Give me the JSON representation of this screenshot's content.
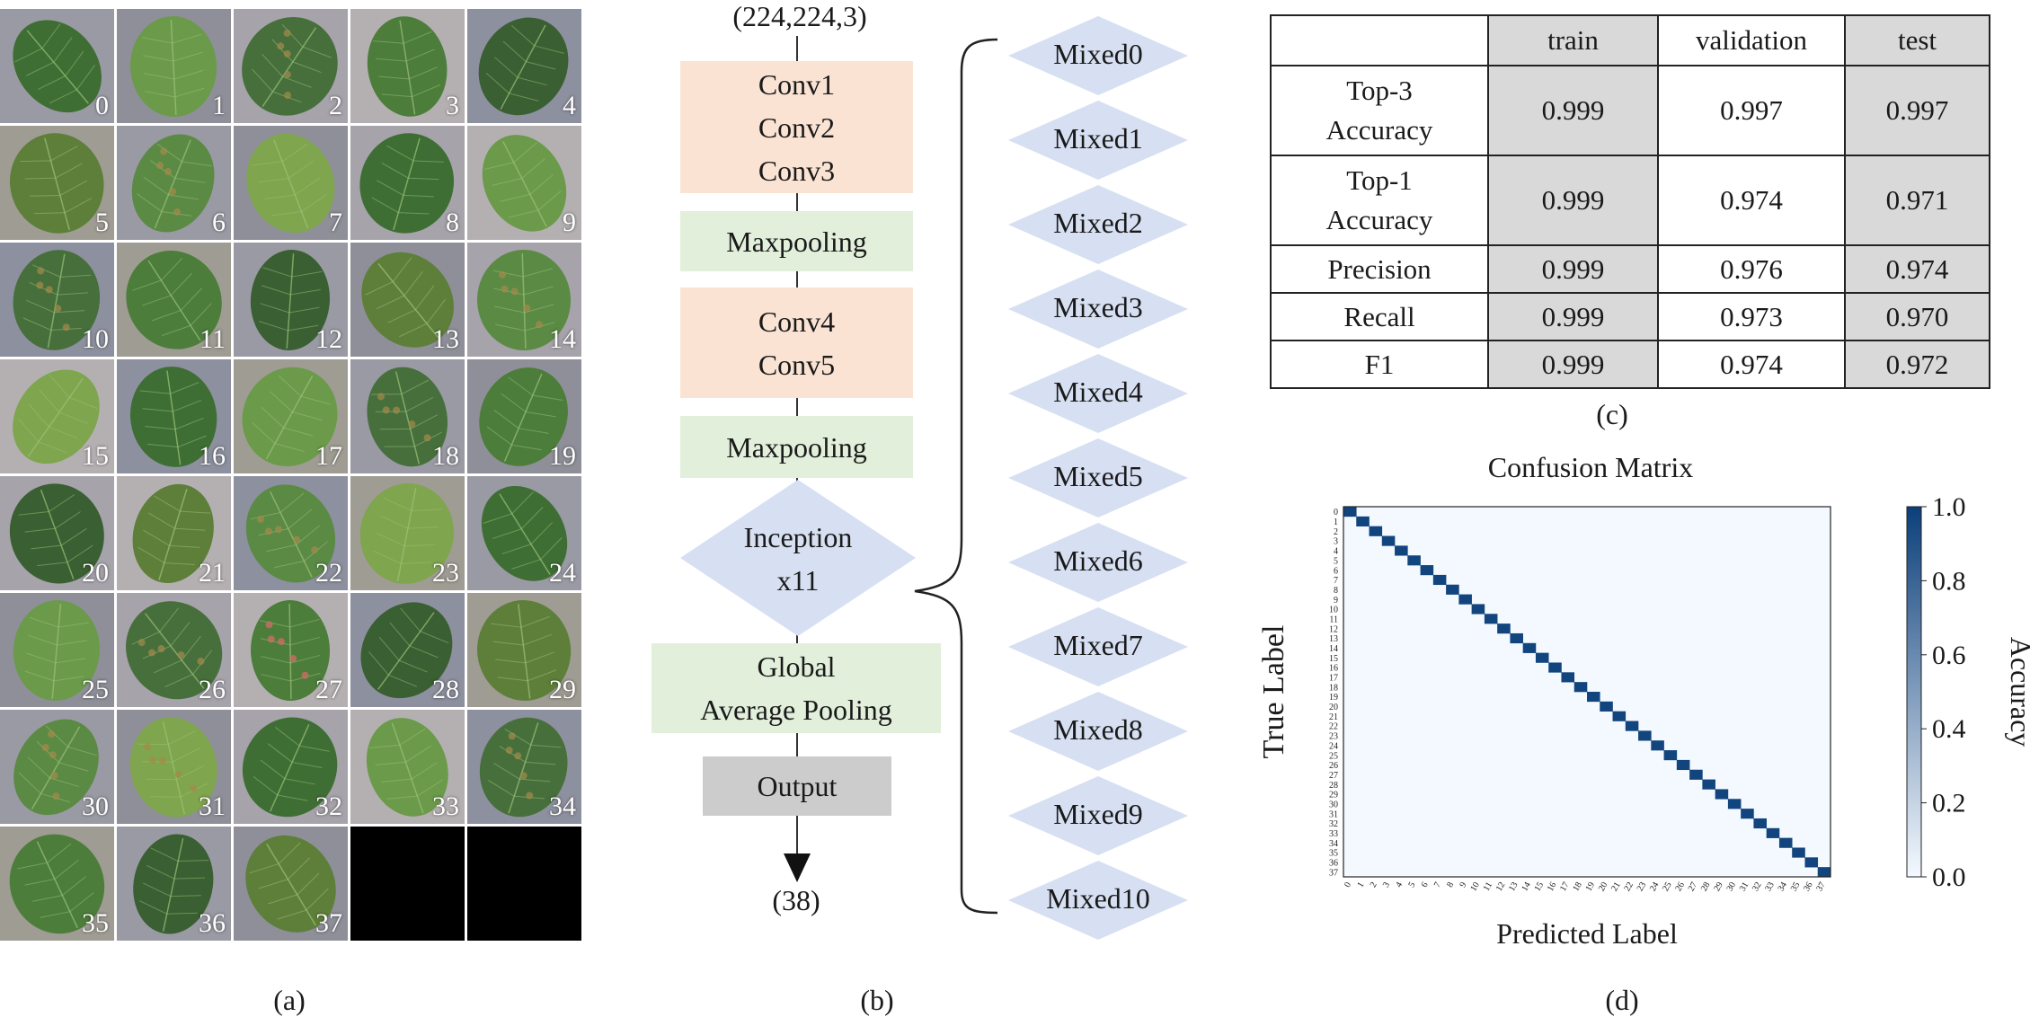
{
  "panel_a": {
    "caption": "(a)",
    "tile_labels": [
      "0",
      "1",
      "2",
      "3",
      "4",
      "5",
      "6",
      "7",
      "8",
      "9",
      "10",
      "11",
      "12",
      "13",
      "14",
      "15",
      "16",
      "17",
      "18",
      "19",
      "20",
      "21",
      "22",
      "23",
      "24",
      "25",
      "26",
      "27",
      "28",
      "29",
      "30",
      "31",
      "32",
      "33",
      "34",
      "35",
      "36",
      "37"
    ],
    "colors": {
      "leaf_dark": "#3f6e34",
      "leaf_mid": "#5b8a45",
      "leaf_light": "#8fb55a",
      "bg_gray": "#9a9aa4",
      "empty": "#000000"
    }
  },
  "panel_b": {
    "caption": "(b)",
    "input_shape": "(224,224,3)",
    "conv_block_1": [
      "Conv1",
      "Conv2",
      "Conv3"
    ],
    "maxpool_1": "Maxpooling",
    "conv_block_2": [
      "Conv4",
      "Conv5"
    ],
    "maxpool_2": "Maxpooling",
    "inception": [
      "Inception",
      "x11"
    ],
    "gap": [
      "Global",
      "Average Pooling"
    ],
    "output": "Output",
    "output_shape": "(38)",
    "mixed": [
      "Mixed0",
      "Mixed1",
      "Mixed2",
      "Mixed3",
      "Mixed4",
      "Mixed5",
      "Mixed6",
      "Mixed7",
      "Mixed8",
      "Mixed9",
      "Mixed10"
    ],
    "colors": {
      "conv": "#fbe3d4",
      "pool": "#e2efdb",
      "diamond": "#d6e0f2",
      "output": "#cccccc"
    }
  },
  "panel_c": {
    "caption": "(c)",
    "headers": [
      "",
      "train",
      "validation",
      "test"
    ],
    "rows": [
      {
        "metric": [
          "Top-3",
          "Accuracy"
        ],
        "train": "0.999",
        "validation": "0.997",
        "test": "0.997"
      },
      {
        "metric": [
          "Top-1",
          "Accuracy"
        ],
        "train": "0.999",
        "validation": "0.974",
        "test": "0.971"
      },
      {
        "metric": [
          "Precision"
        ],
        "train": "0.999",
        "validation": "0.976",
        "test": "0.974"
      },
      {
        "metric": [
          "Recall"
        ],
        "train": "0.999",
        "validation": "0.973",
        "test": "0.970"
      },
      {
        "metric": [
          "F1"
        ],
        "train": "0.999",
        "validation": "0.974",
        "test": "0.972"
      }
    ]
  },
  "panel_d": {
    "caption": "(d)"
  },
  "chart_data": {
    "type": "heatmap",
    "title": "Confusion Matrix",
    "xlabel": "Predicted Label",
    "ylabel": "True Label",
    "colorbar_label": "Accuracy",
    "colorbar_ticks": [
      "1.0",
      "0.8",
      "0.6",
      "0.4",
      "0.2",
      "0.0"
    ],
    "vmin": 0.0,
    "vmax": 1.0,
    "classes": [
      "0",
      "1",
      "2",
      "3",
      "4",
      "5",
      "6",
      "7",
      "8",
      "9",
      "10",
      "11",
      "12",
      "13",
      "14",
      "15",
      "16",
      "17",
      "18",
      "19",
      "20",
      "21",
      "22",
      "23",
      "24",
      "25",
      "26",
      "27",
      "28",
      "29",
      "30",
      "31",
      "32",
      "33",
      "34",
      "35",
      "36",
      "37"
    ],
    "diagonal_accuracy": 0.97,
    "off_diagonal_accuracy": 0.0,
    "colors": {
      "low": "#f4f9ff",
      "high": "#0b3f7a"
    }
  }
}
